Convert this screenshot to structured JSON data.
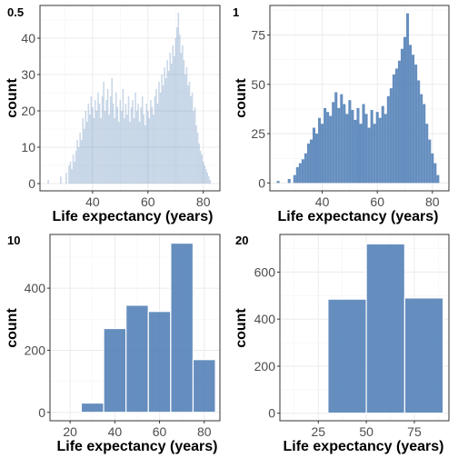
{
  "chart_data": [
    {
      "type": "bar",
      "panel_label": "0.5",
      "xlabel": "Life expectancy (years)",
      "ylabel": "count",
      "xlim": [
        21,
        86
      ],
      "ylim": [
        -2,
        49
      ],
      "xticks": [
        40,
        60,
        80
      ],
      "yticks": [
        0,
        10,
        20,
        30,
        40
      ],
      "binwidth": 0.5,
      "bar_color": "#4a7ab4",
      "bar_fill_opacity": 0.3,
      "grid": true,
      "bins": [
        {
          "x": 24.0,
          "y": 1
        },
        {
          "x": 28.5,
          "y": 2
        },
        {
          "x": 30.5,
          "y": 3
        },
        {
          "x": 31.5,
          "y": 5
        },
        {
          "x": 32.0,
          "y": 6
        },
        {
          "x": 32.5,
          "y": 4
        },
        {
          "x": 33.0,
          "y": 8
        },
        {
          "x": 33.5,
          "y": 6
        },
        {
          "x": 34.0,
          "y": 9
        },
        {
          "x": 34.5,
          "y": 12
        },
        {
          "x": 35.0,
          "y": 10
        },
        {
          "x": 35.5,
          "y": 14
        },
        {
          "x": 36.0,
          "y": 12
        },
        {
          "x": 36.5,
          "y": 18
        },
        {
          "x": 37.0,
          "y": 15
        },
        {
          "x": 37.5,
          "y": 20
        },
        {
          "x": 38.0,
          "y": 17
        },
        {
          "x": 38.5,
          "y": 22
        },
        {
          "x": 39.0,
          "y": 19
        },
        {
          "x": 39.5,
          "y": 24
        },
        {
          "x": 40.0,
          "y": 21
        },
        {
          "x": 40.5,
          "y": 18
        },
        {
          "x": 41.0,
          "y": 23
        },
        {
          "x": 41.5,
          "y": 20
        },
        {
          "x": 42.0,
          "y": 25
        },
        {
          "x": 42.5,
          "y": 22
        },
        {
          "x": 43.0,
          "y": 18
        },
        {
          "x": 43.5,
          "y": 24
        },
        {
          "x": 44.0,
          "y": 28
        },
        {
          "x": 44.5,
          "y": 20
        },
        {
          "x": 45.0,
          "y": 23
        },
        {
          "x": 45.5,
          "y": 26
        },
        {
          "x": 46.0,
          "y": 19
        },
        {
          "x": 46.5,
          "y": 24
        },
        {
          "x": 47.0,
          "y": 29
        },
        {
          "x": 47.5,
          "y": 22
        },
        {
          "x": 48.0,
          "y": 18
        },
        {
          "x": 48.5,
          "y": 25
        },
        {
          "x": 49.0,
          "y": 21
        },
        {
          "x": 49.5,
          "y": 17
        },
        {
          "x": 50.0,
          "y": 23
        },
        {
          "x": 50.5,
          "y": 20
        },
        {
          "x": 51.0,
          "y": 26
        },
        {
          "x": 51.5,
          "y": 18
        },
        {
          "x": 52.0,
          "y": 22
        },
        {
          "x": 52.5,
          "y": 19
        },
        {
          "x": 53.0,
          "y": 24
        },
        {
          "x": 53.5,
          "y": 17
        },
        {
          "x": 54.0,
          "y": 21
        },
        {
          "x": 54.5,
          "y": 23
        },
        {
          "x": 55.0,
          "y": 18
        },
        {
          "x": 55.5,
          "y": 25
        },
        {
          "x": 56.0,
          "y": 20
        },
        {
          "x": 56.5,
          "y": 22
        },
        {
          "x": 57.0,
          "y": 17
        },
        {
          "x": 57.5,
          "y": 21
        },
        {
          "x": 58.0,
          "y": 24
        },
        {
          "x": 58.5,
          "y": 19
        },
        {
          "x": 59.0,
          "y": 16
        },
        {
          "x": 59.5,
          "y": 22
        },
        {
          "x": 60.0,
          "y": 20
        },
        {
          "x": 60.5,
          "y": 18
        },
        {
          "x": 61.0,
          "y": 23
        },
        {
          "x": 61.5,
          "y": 21
        },
        {
          "x": 62.0,
          "y": 19
        },
        {
          "x": 62.5,
          "y": 24
        },
        {
          "x": 63.0,
          "y": 26
        },
        {
          "x": 63.5,
          "y": 22
        },
        {
          "x": 64.0,
          "y": 28
        },
        {
          "x": 64.5,
          "y": 25
        },
        {
          "x": 65.0,
          "y": 30
        },
        {
          "x": 65.5,
          "y": 27
        },
        {
          "x": 66.0,
          "y": 32
        },
        {
          "x": 66.5,
          "y": 29
        },
        {
          "x": 67.0,
          "y": 34
        },
        {
          "x": 67.5,
          "y": 31
        },
        {
          "x": 68.0,
          "y": 36
        },
        {
          "x": 68.5,
          "y": 33
        },
        {
          "x": 69.0,
          "y": 38
        },
        {
          "x": 69.5,
          "y": 35
        },
        {
          "x": 70.0,
          "y": 40
        },
        {
          "x": 70.5,
          "y": 43
        },
        {
          "x": 71.0,
          "y": 47
        },
        {
          "x": 71.5,
          "y": 41
        },
        {
          "x": 72.0,
          "y": 36
        },
        {
          "x": 72.5,
          "y": 38
        },
        {
          "x": 73.0,
          "y": 34
        },
        {
          "x": 73.5,
          "y": 30
        },
        {
          "x": 74.0,
          "y": 32
        },
        {
          "x": 74.5,
          "y": 27
        },
        {
          "x": 75.0,
          "y": 28
        },
        {
          "x": 75.5,
          "y": 24
        },
        {
          "x": 76.0,
          "y": 25
        },
        {
          "x": 76.5,
          "y": 20
        },
        {
          "x": 77.0,
          "y": 21
        },
        {
          "x": 77.5,
          "y": 16
        },
        {
          "x": 78.0,
          "y": 14
        },
        {
          "x": 78.5,
          "y": 11
        },
        {
          "x": 79.0,
          "y": 9
        },
        {
          "x": 79.5,
          "y": 8
        },
        {
          "x": 80.0,
          "y": 6
        },
        {
          "x": 80.5,
          "y": 5
        },
        {
          "x": 81.0,
          "y": 4
        },
        {
          "x": 81.5,
          "y": 3
        },
        {
          "x": 82.0,
          "y": 2
        },
        {
          "x": 82.5,
          "y": 1
        }
      ]
    },
    {
      "type": "bar",
      "panel_label": "1",
      "xlabel": "Life expectancy (years)",
      "ylabel": "count",
      "xlim": [
        21,
        86
      ],
      "ylim": [
        -4,
        90
      ],
      "xticks": [
        40,
        60,
        80
      ],
      "yticks": [
        0,
        25,
        50,
        75
      ],
      "binwidth": 1,
      "bar_color": "#4a7ab4",
      "bar_fill_opacity": 0.85,
      "grid": true,
      "bins": [
        {
          "x": 24,
          "y": 1
        },
        {
          "x": 28,
          "y": 2
        },
        {
          "x": 30,
          "y": 4
        },
        {
          "x": 31,
          "y": 8
        },
        {
          "x": 32,
          "y": 10
        },
        {
          "x": 33,
          "y": 12
        },
        {
          "x": 34,
          "y": 15
        },
        {
          "x": 35,
          "y": 20
        },
        {
          "x": 36,
          "y": 22
        },
        {
          "x": 37,
          "y": 28
        },
        {
          "x": 38,
          "y": 25
        },
        {
          "x": 39,
          "y": 33
        },
        {
          "x": 40,
          "y": 30
        },
        {
          "x": 41,
          "y": 38
        },
        {
          "x": 42,
          "y": 36
        },
        {
          "x": 43,
          "y": 34
        },
        {
          "x": 44,
          "y": 41
        },
        {
          "x": 45,
          "y": 46
        },
        {
          "x": 46,
          "y": 38
        },
        {
          "x": 47,
          "y": 45
        },
        {
          "x": 48,
          "y": 40
        },
        {
          "x": 49,
          "y": 35
        },
        {
          "x": 50,
          "y": 42
        },
        {
          "x": 51,
          "y": 37
        },
        {
          "x": 52,
          "y": 32
        },
        {
          "x": 53,
          "y": 38
        },
        {
          "x": 54,
          "y": 30
        },
        {
          "x": 55,
          "y": 40
        },
        {
          "x": 56,
          "y": 35
        },
        {
          "x": 57,
          "y": 28
        },
        {
          "x": 58,
          "y": 37
        },
        {
          "x": 59,
          "y": 30
        },
        {
          "x": 60,
          "y": 36
        },
        {
          "x": 61,
          "y": 33
        },
        {
          "x": 62,
          "y": 39
        },
        {
          "x": 63,
          "y": 35
        },
        {
          "x": 64,
          "y": 44
        },
        {
          "x": 65,
          "y": 48
        },
        {
          "x": 66,
          "y": 55
        },
        {
          "x": 67,
          "y": 58
        },
        {
          "x": 68,
          "y": 62
        },
        {
          "x": 69,
          "y": 68
        },
        {
          "x": 70,
          "y": 74
        },
        {
          "x": 71,
          "y": 86
        },
        {
          "x": 72,
          "y": 70
        },
        {
          "x": 73,
          "y": 65
        },
        {
          "x": 74,
          "y": 60
        },
        {
          "x": 75,
          "y": 52
        },
        {
          "x": 76,
          "y": 45
        },
        {
          "x": 77,
          "y": 40
        },
        {
          "x": 78,
          "y": 30
        },
        {
          "x": 79,
          "y": 22
        },
        {
          "x": 80,
          "y": 15
        },
        {
          "x": 81,
          "y": 10
        },
        {
          "x": 82,
          "y": 4
        }
      ]
    },
    {
      "type": "bar",
      "panel_label": "10",
      "xlabel": "Life expectancy (years)",
      "ylabel": "count",
      "xlim": [
        11,
        87
      ],
      "ylim": [
        -27,
        573
      ],
      "xticks": [
        20,
        40,
        60,
        80
      ],
      "yticks": [
        0,
        200,
        400
      ],
      "binwidth": 10,
      "bar_color": "#4a7ab4",
      "bar_fill_opacity": 0.85,
      "grid": true,
      "bins": [
        {
          "x": 30,
          "y": 30
        },
        {
          "x": 40,
          "y": 270
        },
        {
          "x": 50,
          "y": 345
        },
        {
          "x": 60,
          "y": 325
        },
        {
          "x": 70,
          "y": 545
        },
        {
          "x": 80,
          "y": 170
        }
      ]
    },
    {
      "type": "bar",
      "panel_label": "20",
      "xlabel": "Life expectancy (years)",
      "ylabel": "count",
      "xlim": [
        5,
        93
      ],
      "ylim": [
        -32,
        760
      ],
      "xticks": [
        25,
        50,
        75
      ],
      "yticks": [
        0,
        200,
        400,
        600
      ],
      "binwidth": 20,
      "bar_color": "#4a7ab4",
      "bar_fill_opacity": 0.85,
      "grid": true,
      "bins": [
        {
          "x": 40,
          "y": 485
        },
        {
          "x": 60,
          "y": 720
        },
        {
          "x": 80,
          "y": 490
        }
      ]
    }
  ]
}
